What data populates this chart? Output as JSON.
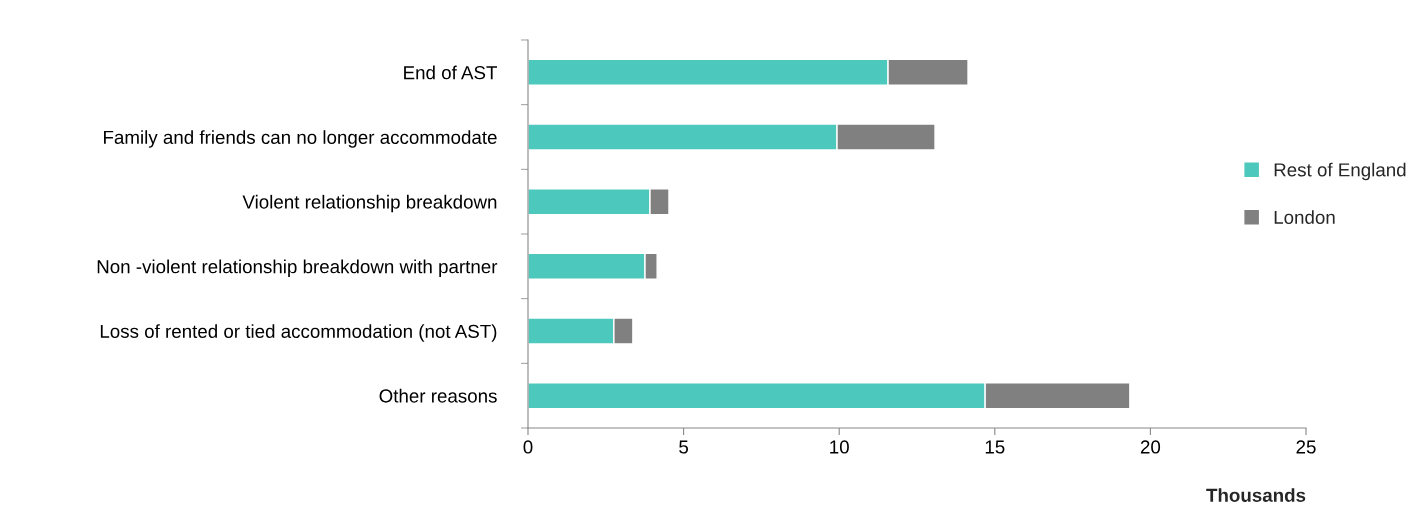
{
  "chart_data": {
    "type": "bar",
    "orientation": "horizontal",
    "stacked": true,
    "categories": [
      "End of AST",
      "Family and friends can no longer accommodate",
      "Violent relationship breakdown",
      "Non -violent relationship breakdown with partner",
      "Loss of rented or tied accommodation (not AST)",
      "Other reasons"
    ],
    "series": [
      {
        "name": "Rest of England",
        "color": "#4dc8bc",
        "values": [
          11.57,
          9.93,
          3.92,
          3.76,
          2.76,
          14.69
        ]
      },
      {
        "name": "London",
        "color": "#808080",
        "values": [
          2.57,
          3.15,
          0.61,
          0.39,
          0.61,
          4.65
        ]
      }
    ],
    "xlim": [
      0,
      25
    ],
    "xticks": [
      0,
      5,
      10,
      15,
      20,
      25
    ],
    "xlabel": "Thousands",
    "grid": false,
    "legend": "right"
  }
}
